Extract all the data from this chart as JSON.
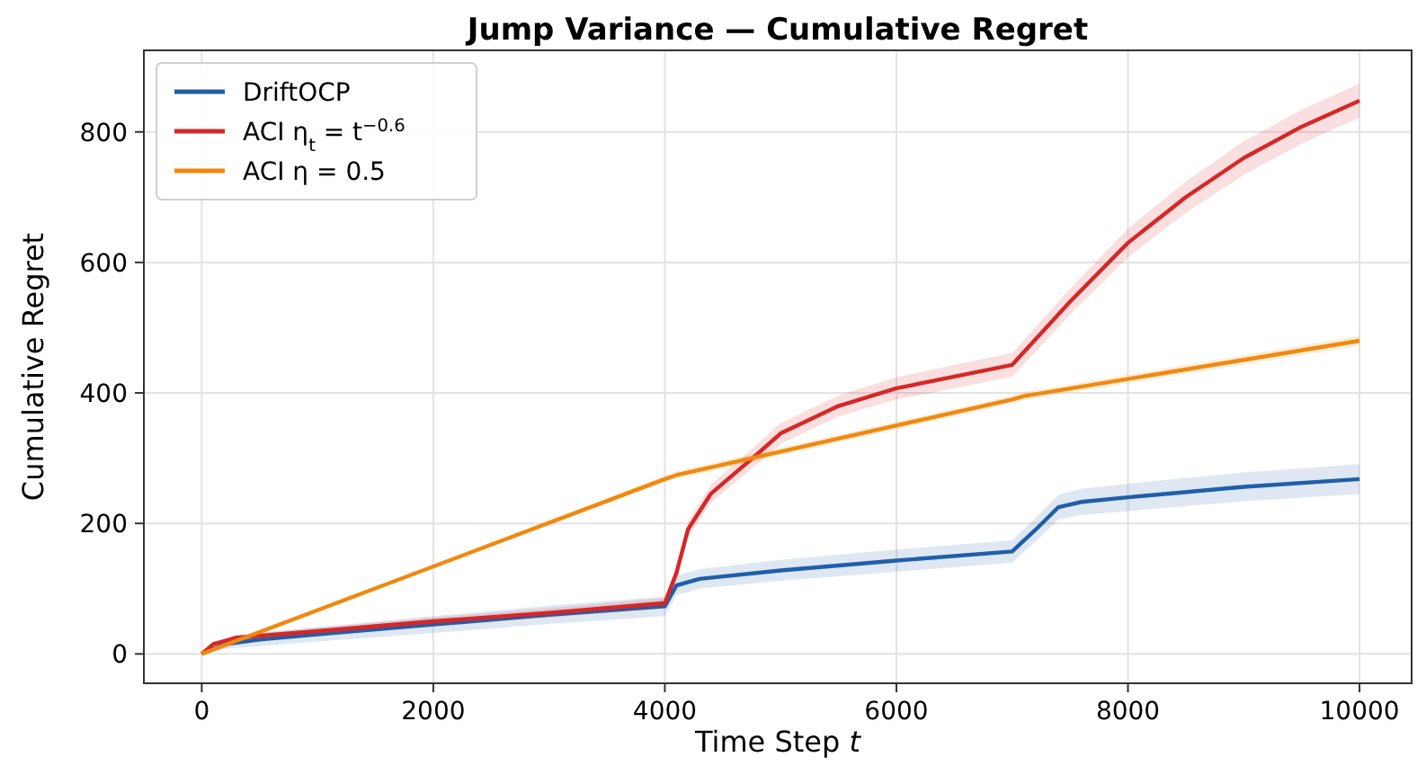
{
  "chart_data": {
    "type": "line",
    "title": "Jump Variance — Cumulative Regret",
    "xlabel": "Time Step t",
    "ylabel": "Cumulative Regret",
    "xlim": [
      -500,
      10450
    ],
    "ylim": [
      -45,
      925
    ],
    "xticks": [
      0,
      2000,
      4000,
      6000,
      8000,
      10000
    ],
    "yticks": [
      0,
      200,
      400,
      600,
      800
    ],
    "grid": true,
    "legend": "top left",
    "series": [
      {
        "name": "DriftOCP",
        "color": "#1f5fa8",
        "x": [
          0,
          200,
          500,
          1000,
          2000,
          3000,
          4000,
          4100,
          4300,
          5000,
          6000,
          7000,
          7200,
          7400,
          7600,
          8000,
          9000,
          10000
        ],
        "values": [
          0,
          15,
          22,
          30,
          45,
          60,
          73,
          105,
          115,
          128,
          143,
          157,
          190,
          225,
          233,
          240,
          256,
          268
        ],
        "lower": [
          0,
          8,
          12,
          19,
          32,
          46,
          58,
          90,
          100,
          112,
          126,
          140,
          172,
          206,
          213,
          219,
          234,
          245
        ],
        "upper": [
          0,
          22,
          32,
          41,
          58,
          74,
          88,
          120,
          130,
          144,
          160,
          174,
          208,
          244,
          253,
          261,
          278,
          291
        ]
      },
      {
        "name": "ACI η$_{t}$ = t$^{−0.6}$",
        "color": "#d62728",
        "x": [
          0,
          100,
          300,
          1000,
          2000,
          3000,
          4000,
          4100,
          4200,
          4400,
          4790,
          5000,
          5500,
          6000,
          6500,
          7000,
          7500,
          8000,
          8500,
          9000,
          9500,
          10000
        ],
        "values": [
          0,
          15,
          25,
          35,
          50,
          63,
          78,
          124,
          191,
          246,
          305,
          338,
          380,
          407,
          425,
          443,
          540,
          630,
          700,
          760,
          808,
          848
        ],
        "lower": [
          0,
          12,
          21,
          30,
          44,
          56,
          70,
          114,
          179,
          232,
          290,
          322,
          364,
          390,
          407,
          425,
          520,
          608,
          676,
          734,
          782,
          822
        ],
        "upper": [
          0,
          18,
          29,
          40,
          56,
          70,
          86,
          134,
          203,
          260,
          320,
          354,
          396,
          424,
          443,
          461,
          560,
          652,
          724,
          786,
          834,
          874
        ]
      },
      {
        "name": "ACI η = 0.5",
        "color": "#f0890f",
        "x": [
          0,
          4000,
          4100,
          7000,
          7100,
          10000
        ],
        "values": [
          0,
          268,
          274,
          390,
          395,
          480
        ],
        "lower": [
          0,
          263,
          268,
          384,
          389,
          472
        ],
        "upper": [
          0,
          273,
          280,
          396,
          401,
          488
        ]
      }
    ]
  }
}
